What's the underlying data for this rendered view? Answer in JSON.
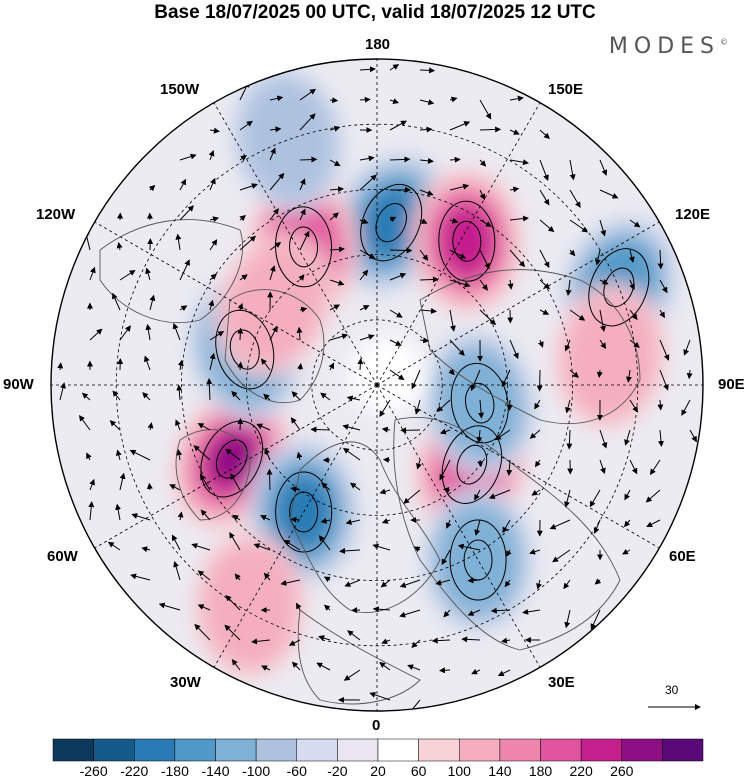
{
  "title": "Base 18/07/2025 00 UTC, valid 18/07/2025 12 UTC",
  "logo": "MODES",
  "logo_mark": "©",
  "longitude_labels": {
    "top": "180",
    "top_left": "150W",
    "top_right": "150E",
    "upper_left": "120W",
    "upper_right": "120E",
    "left": "90W",
    "right": "90E",
    "lower_left": "60W",
    "lower_right": "60E",
    "bottom_left": "30W",
    "bottom_right": "30E",
    "bottom": "0"
  },
  "vector_scale_label": "30",
  "colorbar": {
    "labels": [
      "-260",
      "-220",
      "-180",
      "-140",
      "-100",
      "-60",
      "-20",
      "20",
      "60",
      "100",
      "140",
      "180",
      "220",
      "260"
    ],
    "colors": [
      "#0d3a5c",
      "#145a8a",
      "#2a7bb5",
      "#4f98c8",
      "#7fb0d6",
      "#aec2e0",
      "#d6dcee",
      "#e9e6f2",
      "#ffffff",
      "#f7d3d6",
      "#f4aebf",
      "#ee85ad",
      "#e1559e",
      "#c41f8d",
      "#8e0f84",
      "#5a0a78"
    ]
  },
  "anomaly_centers": [
    {
      "lon_deg": 175,
      "colat": 0.5,
      "kind": "negative",
      "level": 0.85
    },
    {
      "lon_deg": 148,
      "colat": 0.52,
      "kind": "positive",
      "level": 0.8
    },
    {
      "lon_deg": 112,
      "colat": 0.8,
      "kind": "negative",
      "level": 0.6
    },
    {
      "lon_deg": 208,
      "colat": 0.48,
      "kind": "positive",
      "level": 0.65
    },
    {
      "lon_deg": 297,
      "colat": 0.5,
      "kind": "positive",
      "level": 1.0
    },
    {
      "lon_deg": 330,
      "colat": 0.45,
      "kind": "negative",
      "level": 0.75
    },
    {
      "lon_deg": 255,
      "colat": 0.42,
      "kind": "negative",
      "level": 0.55
    },
    {
      "lon_deg": 50,
      "colat": 0.38,
      "kind": "positive",
      "level": 0.65
    },
    {
      "lon_deg": 30,
      "colat": 0.62,
      "kind": "negative",
      "level": 0.5
    },
    {
      "lon_deg": 80,
      "colat": 0.32,
      "kind": "negative",
      "level": 0.45
    },
    {
      "lon_deg": 97,
      "colat": 0.72,
      "kind": "positive",
      "level": 0.25
    },
    {
      "lon_deg": 330,
      "colat": 0.78,
      "kind": "positive",
      "level": 0.25
    },
    {
      "lon_deg": 232,
      "colat": 0.4,
      "kind": "positive",
      "level": 0.3
    },
    {
      "lon_deg": 200,
      "colat": 0.8,
      "kind": "negative",
      "level": 0.25
    }
  ]
}
